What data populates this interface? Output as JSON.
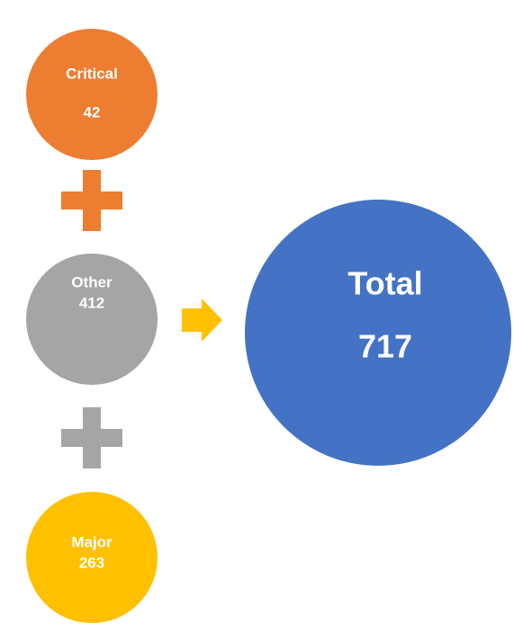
{
  "nodes": [
    {
      "label": "Critical",
      "value": 42
    },
    {
      "label": "Other",
      "value": 412
    },
    {
      "label": "Major",
      "value": 263
    }
  ],
  "result": {
    "label": "Total",
    "value": 717
  }
}
